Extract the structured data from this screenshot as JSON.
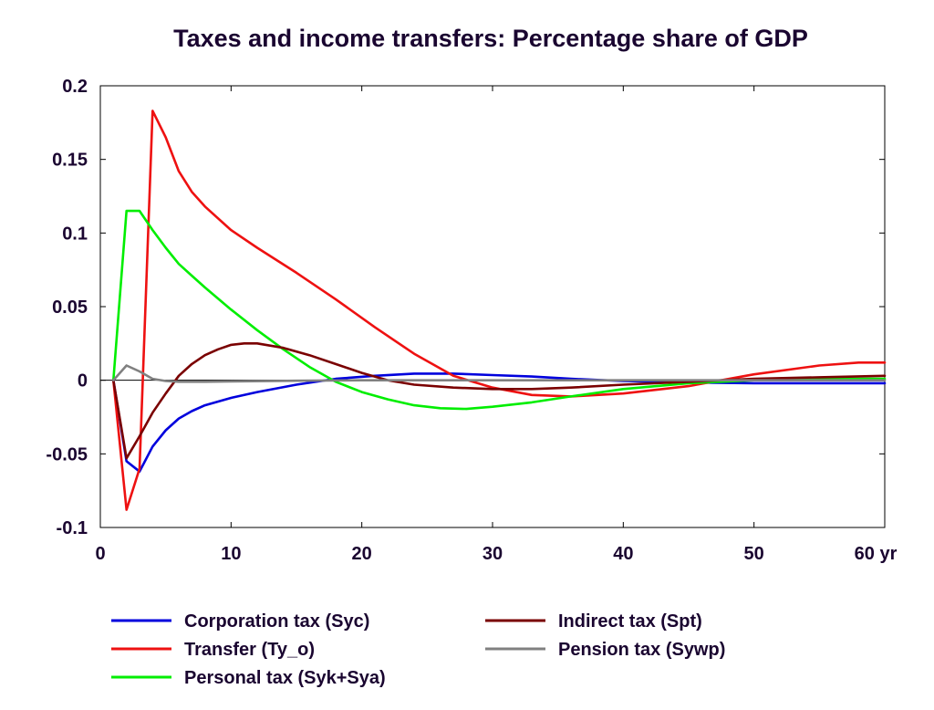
{
  "chart_data": {
    "type": "line",
    "title": "Taxes and income transfers: Percentage share of GDP",
    "xlabel": "",
    "ylabel": "",
    "xlim": [
      0,
      60
    ],
    "ylim": [
      -0.1,
      0.2
    ],
    "x_ticks": [
      0,
      10,
      20,
      30,
      40,
      50,
      60
    ],
    "x_tick_labels": [
      "0",
      "10",
      "20",
      "30",
      "40",
      "50",
      "60 yr"
    ],
    "y_ticks": [
      -0.1,
      -0.05,
      0,
      0.05,
      0.1,
      0.15,
      0.2
    ],
    "y_tick_labels": [
      "-0.1",
      "-0.05",
      "0",
      "0.05",
      "0.1",
      "0.15",
      "0.2"
    ],
    "grid": false,
    "legend_position": "bottom",
    "series": [
      {
        "name": "Corporation tax (Syc)",
        "color": "#0000dd",
        "points": [
          [
            1,
            0
          ],
          [
            2,
            -0.055
          ],
          [
            3,
            -0.062
          ],
          [
            4,
            -0.045
          ],
          [
            5,
            -0.034
          ],
          [
            6,
            -0.026
          ],
          [
            7,
            -0.021
          ],
          [
            8,
            -0.017
          ],
          [
            10,
            -0.012
          ],
          [
            12,
            -0.008
          ],
          [
            15,
            -0.003
          ],
          [
            18,
            0.001
          ],
          [
            21,
            0.003
          ],
          [
            24,
            0.0045
          ],
          [
            27,
            0.0045
          ],
          [
            30,
            0.0035
          ],
          [
            33,
            0.0025
          ],
          [
            36,
            0.001
          ],
          [
            40,
            -0.0005
          ],
          [
            45,
            -0.0015
          ],
          [
            50,
            -0.002
          ],
          [
            55,
            -0.002
          ],
          [
            60,
            -0.002
          ]
        ]
      },
      {
        "name": "Transfer (Ty_o)",
        "color": "#ee1111",
        "points": [
          [
            1,
            0
          ],
          [
            2,
            -0.088
          ],
          [
            3,
            -0.06
          ],
          [
            4,
            0.183
          ],
          [
            5,
            0.165
          ],
          [
            6,
            0.142
          ],
          [
            7,
            0.128
          ],
          [
            8,
            0.118
          ],
          [
            10,
            0.102
          ],
          [
            12,
            0.09
          ],
          [
            15,
            0.073
          ],
          [
            18,
            0.055
          ],
          [
            21,
            0.036
          ],
          [
            24,
            0.018
          ],
          [
            27,
            0.003
          ],
          [
            30,
            -0.005
          ],
          [
            33,
            -0.01
          ],
          [
            36,
            -0.011
          ],
          [
            40,
            -0.009
          ],
          [
            45,
            -0.004
          ],
          [
            50,
            0.004
          ],
          [
            55,
            0.01
          ],
          [
            58,
            0.012
          ],
          [
            60,
            0.012
          ]
        ]
      },
      {
        "name": "Personal tax (Syk+Sya)",
        "color": "#00ee00",
        "points": [
          [
            1,
            0
          ],
          [
            2,
            0.115
          ],
          [
            3,
            0.115
          ],
          [
            4,
            0.102
          ],
          [
            5,
            0.09
          ],
          [
            6,
            0.079
          ],
          [
            7,
            0.071
          ],
          [
            8,
            0.063
          ],
          [
            10,
            0.048
          ],
          [
            12,
            0.034
          ],
          [
            14,
            0.021
          ],
          [
            16,
            0.009
          ],
          [
            18,
            -0.001
          ],
          [
            20,
            -0.008
          ],
          [
            22,
            -0.013
          ],
          [
            24,
            -0.017
          ],
          [
            26,
            -0.019
          ],
          [
            28,
            -0.0195
          ],
          [
            30,
            -0.018
          ],
          [
            33,
            -0.015
          ],
          [
            36,
            -0.011
          ],
          [
            40,
            -0.006
          ],
          [
            45,
            -0.002
          ],
          [
            50,
            0.0
          ],
          [
            55,
            0.001
          ],
          [
            60,
            0.001
          ]
        ]
      },
      {
        "name": "Indirect tax (Spt)",
        "color": "#7a0000",
        "points": [
          [
            1,
            0
          ],
          [
            2,
            -0.053
          ],
          [
            3,
            -0.038
          ],
          [
            4,
            -0.022
          ],
          [
            5,
            -0.009
          ],
          [
            6,
            0.003
          ],
          [
            7,
            0.011
          ],
          [
            8,
            0.017
          ],
          [
            9,
            0.021
          ],
          [
            10,
            0.024
          ],
          [
            11,
            0.025
          ],
          [
            12,
            0.025
          ],
          [
            14,
            0.022
          ],
          [
            16,
            0.017
          ],
          [
            18,
            0.011
          ],
          [
            20,
            0.005
          ],
          [
            22,
            0.0
          ],
          [
            24,
            -0.003
          ],
          [
            27,
            -0.005
          ],
          [
            30,
            -0.006
          ],
          [
            33,
            -0.006
          ],
          [
            36,
            -0.005
          ],
          [
            40,
            -0.003
          ],
          [
            45,
            -0.001
          ],
          [
            50,
            0.001
          ],
          [
            55,
            0.002
          ],
          [
            60,
            0.003
          ]
        ]
      },
      {
        "name": "Pension tax (Sywp)",
        "color": "#808080",
        "points": [
          [
            1,
            0
          ],
          [
            2,
            0.01
          ],
          [
            3,
            0.006
          ],
          [
            4,
            0.001
          ],
          [
            5,
            -0.0005
          ],
          [
            6,
            -0.001
          ],
          [
            8,
            -0.001
          ],
          [
            10,
            -0.0008
          ],
          [
            15,
            -0.0003
          ],
          [
            20,
            0.0
          ],
          [
            30,
            0.0
          ],
          [
            40,
            0.0
          ],
          [
            50,
            0.0
          ],
          [
            60,
            0.0
          ]
        ]
      }
    ]
  }
}
